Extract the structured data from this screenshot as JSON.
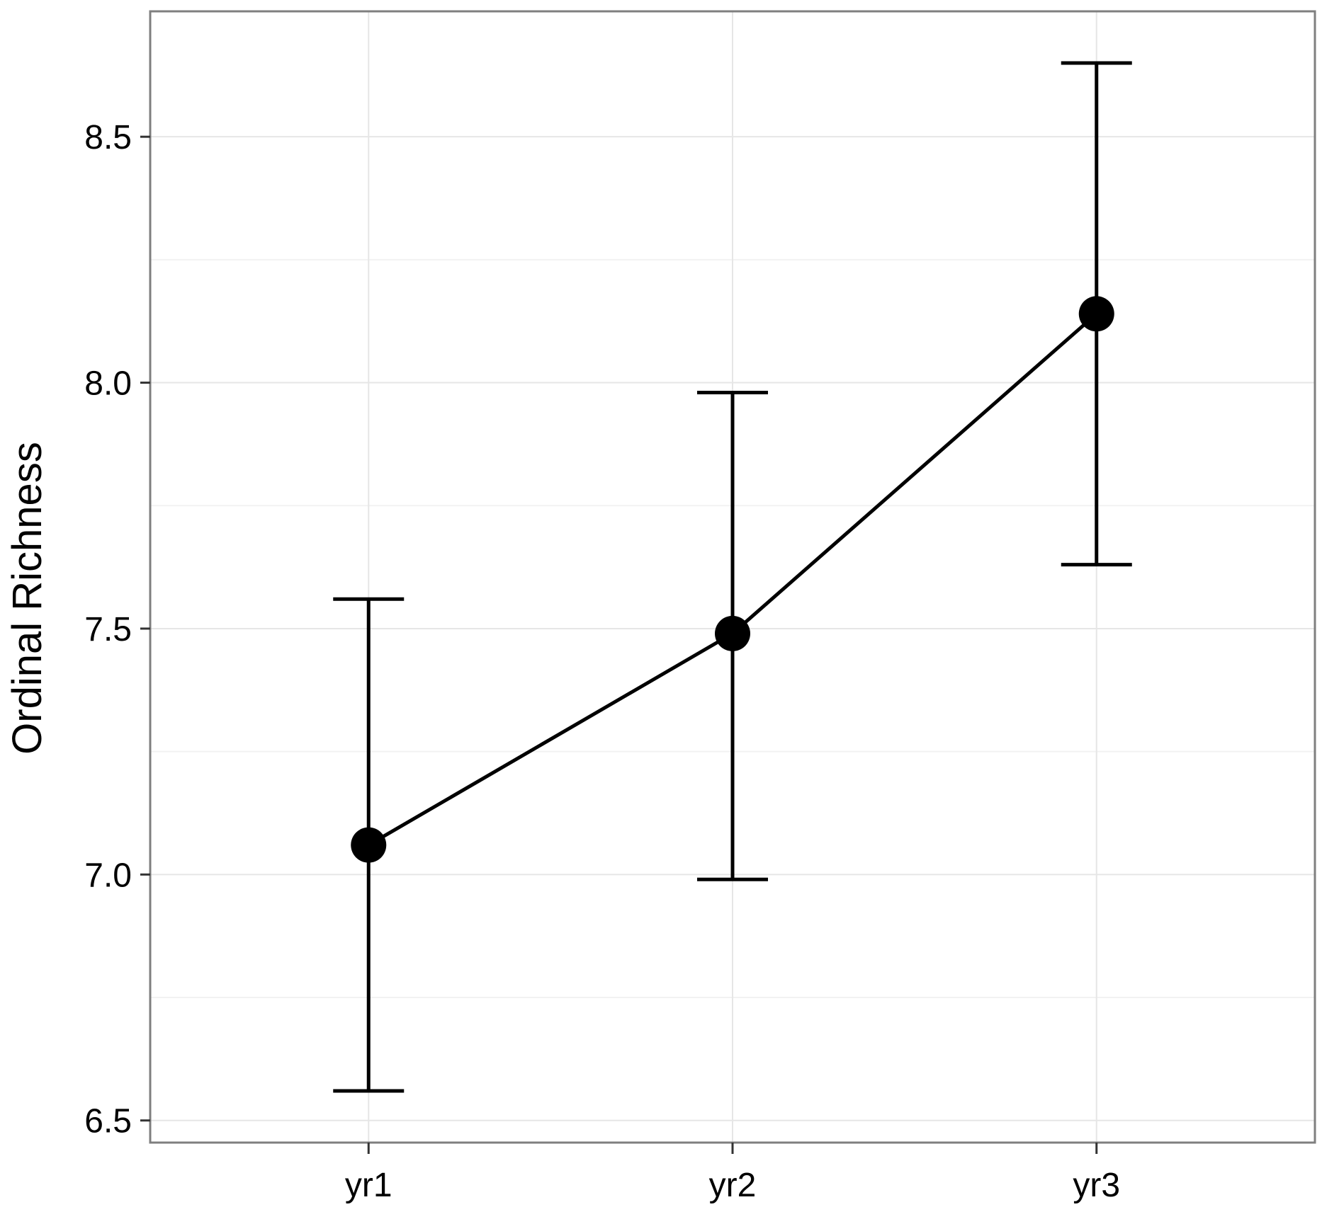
{
  "chart_data": {
    "type": "line",
    "title": "",
    "xlabel": "",
    "ylabel": "Ordinal Richness",
    "categories": [
      "yr1",
      "yr2",
      "yr3"
    ],
    "series": [
      {
        "values": [
          7.06,
          7.49,
          8.14
        ],
        "error_low": [
          6.56,
          6.99,
          7.63
        ],
        "error_high": [
          7.56,
          7.98,
          8.65
        ]
      }
    ],
    "ylim": [
      6.455,
      8.755
    ],
    "yticks": [
      6.5,
      7.0,
      7.5,
      8.0,
      8.5
    ],
    "ytick_labels": [
      "6.5",
      "7.0",
      "7.5",
      "8.0",
      "8.5"
    ],
    "grid": true,
    "legend": "none",
    "colors": {
      "line": "#000000",
      "points": "#000000",
      "errorbars": "#000000",
      "grid": "#e6e6e6",
      "panel_border": "#7f7f7f"
    }
  }
}
